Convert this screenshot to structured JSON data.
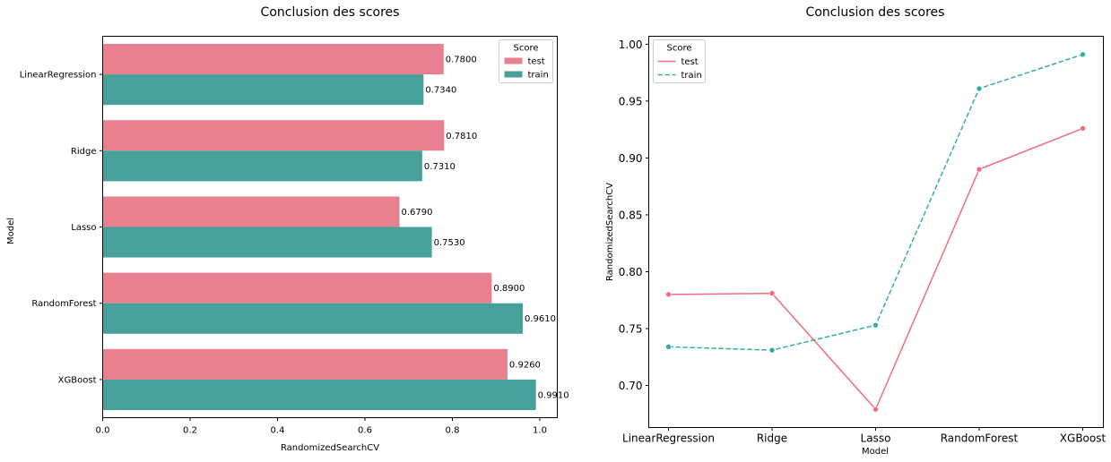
{
  "colors": {
    "test": "#e8808f",
    "train": "#47a09a",
    "test_line": "#f06a80",
    "train_line": "#35ada5"
  },
  "chart_data": [
    {
      "type": "bar",
      "orientation": "horizontal",
      "title": "Conclusion des scores",
      "xlabel": "RandomizedSearchCV",
      "ylabel": "Model",
      "categories": [
        "LinearRegression",
        "Ridge",
        "Lasso",
        "RandomForest",
        "XGBoost"
      ],
      "series": [
        {
          "name": "test",
          "values": [
            0.78,
            0.781,
            0.679,
            0.89,
            0.926
          ],
          "labels": [
            "0.7800",
            "0.7810",
            "0.6790",
            "0.8900",
            "0.9260"
          ]
        },
        {
          "name": "train",
          "values": [
            0.734,
            0.731,
            0.753,
            0.961,
            0.991
          ],
          "labels": [
            "0.7340",
            "0.7310",
            "0.7530",
            "0.9610",
            "0.9910"
          ]
        }
      ],
      "xlim": [
        0,
        1.04
      ],
      "xticks": [
        "0.0",
        "0.2",
        "0.4",
        "0.6",
        "0.8",
        "1.0"
      ],
      "legend": {
        "title": "Score",
        "position": "top-right"
      },
      "grid": false
    },
    {
      "type": "line",
      "title": "Conclusion des scores",
      "xlabel": "Model",
      "ylabel": "RandomizedSearchCV",
      "categories": [
        "LinearRegression",
        "Ridge",
        "Lasso",
        "RandomForest",
        "XGBoost"
      ],
      "series": [
        {
          "name": "test",
          "values": [
            0.78,
            0.781,
            0.679,
            0.89,
            0.926
          ],
          "style": "solid"
        },
        {
          "name": "train",
          "values": [
            0.734,
            0.731,
            0.753,
            0.961,
            0.991
          ],
          "style": "dashed"
        }
      ],
      "ylim": [
        0.663,
        1.007
      ],
      "yticks": [
        "0.70",
        "0.75",
        "0.80",
        "0.85",
        "0.90",
        "0.95",
        "1.00"
      ],
      "legend": {
        "title": "Score",
        "position": "top-left"
      },
      "grid": false
    }
  ]
}
